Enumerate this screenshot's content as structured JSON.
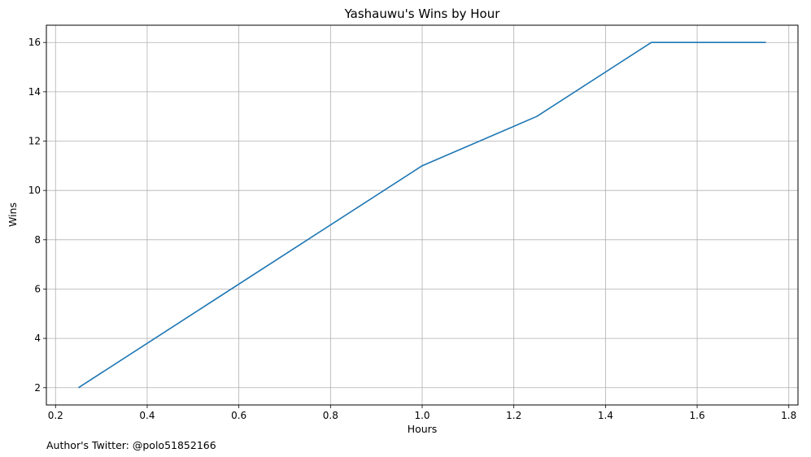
{
  "chart_data": {
    "type": "line",
    "title": "Yashauwu's Wins by Hour",
    "xlabel": "Hours",
    "ylabel": "Wins",
    "x": [
      0.25,
      0.5,
      0.75,
      1.0,
      1.25,
      1.5,
      1.75
    ],
    "series": [
      {
        "values": [
          2,
          5.0,
          8.0,
          11,
          13,
          16,
          16
        ],
        "color": "#1f77b4"
      }
    ],
    "xlim": [
      0.18,
      1.82
    ],
    "ylim": [
      1.3,
      16.7
    ],
    "xticks": [
      0.2,
      0.4,
      0.6,
      0.8,
      1.0,
      1.2,
      1.4,
      1.6,
      1.8
    ],
    "xtick_labels": [
      "0.2",
      "0.4",
      "0.6",
      "0.8",
      "1.0",
      "1.2",
      "1.4",
      "1.6",
      "1.8"
    ],
    "yticks": [
      2,
      4,
      6,
      8,
      10,
      12,
      14,
      16
    ],
    "ytick_labels": [
      "2",
      "4",
      "6",
      "8",
      "10",
      "12",
      "14",
      "16"
    ],
    "grid": true,
    "footer": "Author's Twitter: @polo51852166"
  }
}
